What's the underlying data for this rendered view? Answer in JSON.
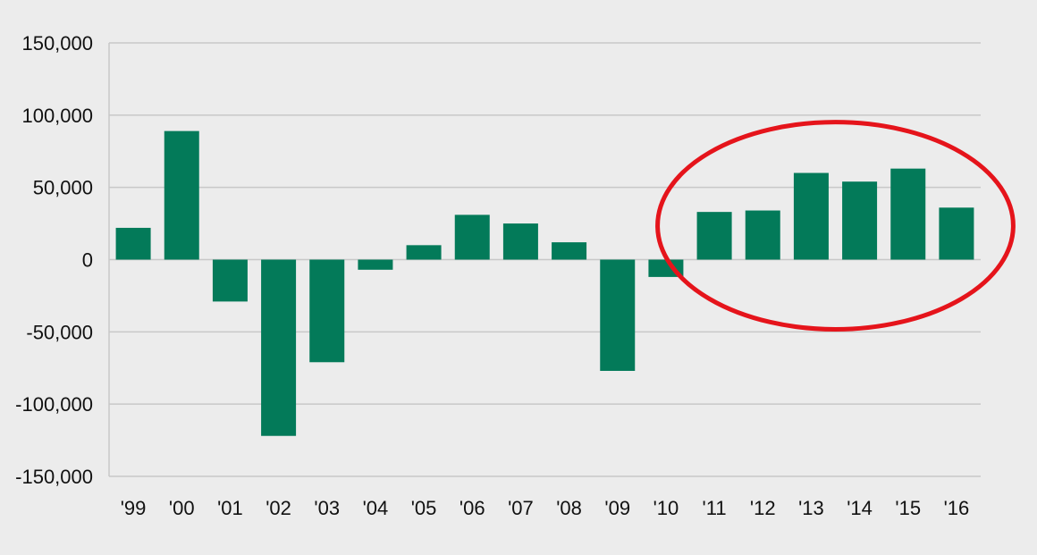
{
  "chart_data": {
    "type": "bar",
    "title": "",
    "xlabel": "",
    "ylabel": "",
    "categories": [
      "'99",
      "'00",
      "'01",
      "'02",
      "'03",
      "'04",
      "'05",
      "'06",
      "'07",
      "'08",
      "'09",
      "'10",
      "'11",
      "'12",
      "'13",
      "'14",
      "'15",
      "'16"
    ],
    "series": [
      {
        "values": [
          22000,
          89000,
          -29000,
          -122000,
          -71000,
          -7000,
          10000,
          31000,
          25000,
          12000,
          -77000,
          -12000,
          33000,
          34000,
          60000,
          54000,
          63000,
          36000
        ]
      }
    ],
    "ylim": [
      -150000,
      150000
    ],
    "yticks": [
      150000,
      100000,
      50000,
      0,
      -50000,
      -100000,
      -150000
    ],
    "ytick_labels": [
      "150,000",
      "100,000",
      "50,000",
      "0",
      "-50,000",
      "-100,000",
      "-150,000"
    ],
    "grid": true,
    "highlight": {
      "shape": "ellipse",
      "color": "#e5141b",
      "categories": [
        "'11",
        "'12",
        "'13",
        "'14",
        "'15",
        "'16"
      ]
    },
    "colors": {
      "bar": "#037a59",
      "background": "#ececec",
      "grid": "#c8c8c8",
      "highlight": "#e5141b"
    }
  }
}
